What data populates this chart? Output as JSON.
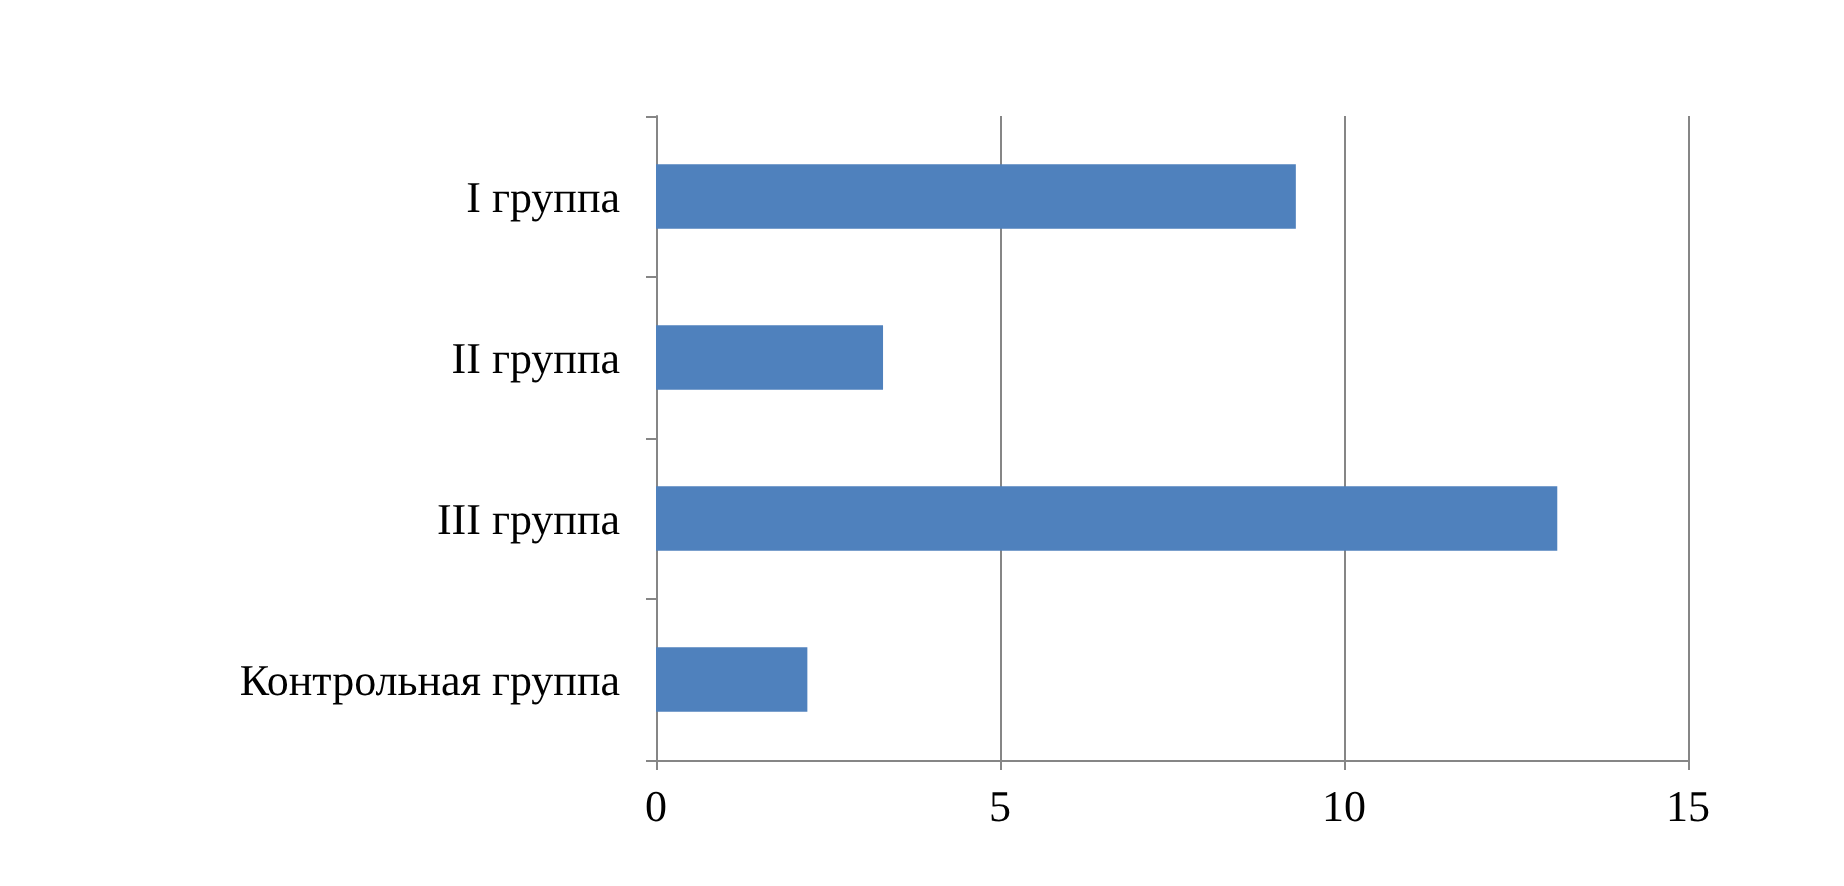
{
  "chart_data": {
    "type": "bar",
    "orientation": "horizontal",
    "categories": [
      "I группа",
      "II группа",
      "III группа",
      "Контрольная группа"
    ],
    "values": [
      9.3,
      3.3,
      13.1,
      2.2
    ],
    "color": "#4f81bd",
    "xlim": [
      0,
      15
    ],
    "xticks": [
      0,
      5,
      10,
      15
    ],
    "grid": "x"
  }
}
